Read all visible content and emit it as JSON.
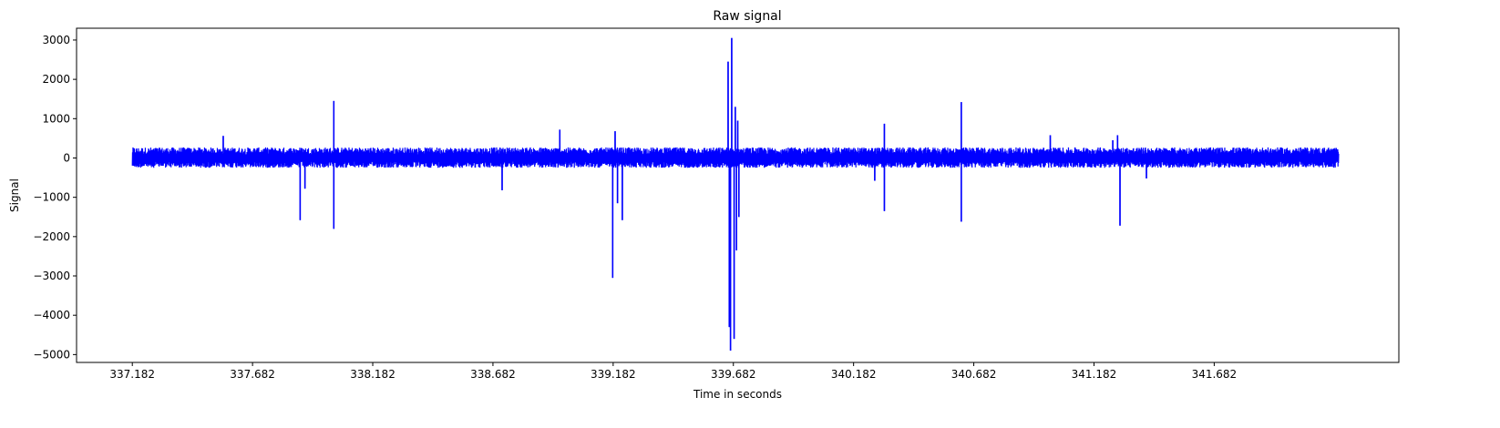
{
  "chart_data": {
    "type": "line",
    "title": "Raw signal",
    "xlabel": "Time in seconds",
    "ylabel": "Signal",
    "xlim": [
      336.95,
      342.45
    ],
    "ylim": [
      -5200,
      3300
    ],
    "grid": false,
    "line_color": "#0000ff",
    "x_ticks": [
      337.182,
      337.682,
      338.182,
      338.682,
      339.182,
      339.682,
      340.182,
      340.682,
      341.182,
      341.682
    ],
    "x_tick_labels": [
      "337.182",
      "337.682",
      "338.182",
      "338.682",
      "339.182",
      "339.682",
      "340.182",
      "340.682",
      "341.182",
      "341.682"
    ],
    "y_ticks": [
      3000,
      2000,
      1000,
      0,
      -1000,
      -2000,
      -3000,
      -4000,
      -5000
    ],
    "y_tick_labels": [
      "3000",
      "2000",
      "1000",
      "0",
      "−1000",
      "−2000",
      "−3000",
      "−4000",
      "−5000"
    ],
    "series": [
      {
        "x_range": [
          337.182,
          342.2
        ],
        "noise_band": [
          -250,
          300
        ],
        "spikes": [
          {
            "x": 337.56,
            "y": 560
          },
          {
            "x": 337.88,
            "y": -1580
          },
          {
            "x": 337.9,
            "y": -780
          },
          {
            "x": 338.02,
            "y": 1450
          },
          {
            "x": 338.02,
            "y": -1800
          },
          {
            "x": 338.72,
            "y": -820
          },
          {
            "x": 338.96,
            "y": 720
          },
          {
            "x": 339.18,
            "y": -3050
          },
          {
            "x": 339.19,
            "y": 680
          },
          {
            "x": 339.2,
            "y": -1150
          },
          {
            "x": 339.22,
            "y": -1580
          },
          {
            "x": 339.66,
            "y": 2450
          },
          {
            "x": 339.665,
            "y": -4300
          },
          {
            "x": 339.67,
            "y": -4900
          },
          {
            "x": 339.675,
            "y": 3050
          },
          {
            "x": 339.685,
            "y": -4600
          },
          {
            "x": 339.69,
            "y": 1300
          },
          {
            "x": 339.695,
            "y": -2350
          },
          {
            "x": 339.7,
            "y": 950
          },
          {
            "x": 339.705,
            "y": -1500
          },
          {
            "x": 340.27,
            "y": -580
          },
          {
            "x": 340.31,
            "y": 870
          },
          {
            "x": 340.31,
            "y": -1350
          },
          {
            "x": 340.63,
            "y": 1420
          },
          {
            "x": 340.63,
            "y": -1620
          },
          {
            "x": 341.0,
            "y": 580
          },
          {
            "x": 341.26,
            "y": 450
          },
          {
            "x": 341.28,
            "y": 580
          },
          {
            "x": 341.29,
            "y": -1720
          },
          {
            "x": 341.4,
            "y": -520
          }
        ]
      }
    ]
  }
}
